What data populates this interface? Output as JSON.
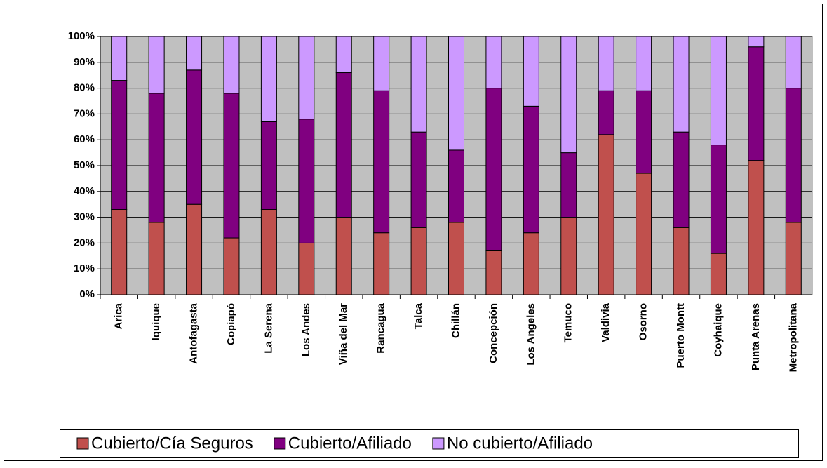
{
  "chart_data": {
    "type": "stacked_bar",
    "categories": [
      "Arica",
      "Iquique",
      "Antofagasta",
      "Copiapó",
      "La Serena",
      "Los Andes",
      "Viña del Mar",
      "Rancagua",
      "Talca",
      "Chillán",
      "Concepción",
      "Los Angeles",
      "Temuco",
      "Valdivia",
      "Osorno",
      "Puerto Montt",
      "Coyhaique",
      "Punta Arenas",
      "Metropolitana"
    ],
    "series": [
      {
        "name": "Cubierto/Cía Seguros",
        "color": "#c0504d",
        "values": [
          33,
          28,
          35,
          22,
          33,
          20,
          30,
          24,
          26,
          28,
          17,
          24,
          30,
          62,
          47,
          26,
          16,
          52,
          28
        ]
      },
      {
        "name": "Cubierto/Afiliado",
        "color": "#800080",
        "values": [
          50,
          50,
          52,
          56,
          34,
          48,
          56,
          55,
          37,
          28,
          63,
          49,
          25,
          17,
          32,
          37,
          42,
          44,
          52
        ]
      },
      {
        "name": "No cubierto/Afiliado",
        "color": "#cc99ff",
        "values": [
          17,
          22,
          13,
          22,
          33,
          32,
          14,
          21,
          37,
          44,
          20,
          27,
          45,
          21,
          21,
          37,
          42,
          4,
          20
        ]
      }
    ],
    "ylim": [
      0,
      100
    ],
    "yticks": [
      {
        "value": 0,
        "label": "0%"
      },
      {
        "value": 10,
        "label": "10%"
      },
      {
        "value": 20,
        "label": "20%"
      },
      {
        "value": 30,
        "label": "30%"
      },
      {
        "value": 40,
        "label": "40%"
      },
      {
        "value": 50,
        "label": "50%"
      },
      {
        "value": 60,
        "label": "60%"
      },
      {
        "value": 70,
        "label": "70%"
      },
      {
        "value": 80,
        "label": "80%"
      },
      {
        "value": 90,
        "label": "90%"
      },
      {
        "value": 100,
        "label": "100%"
      }
    ],
    "grid": true,
    "legend": "bottom"
  }
}
